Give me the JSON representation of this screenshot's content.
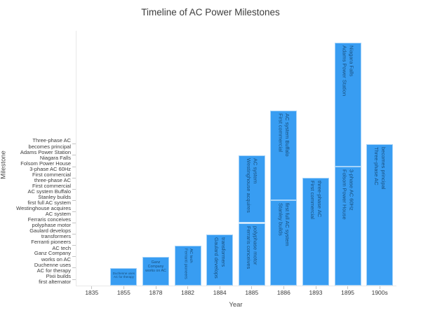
{
  "title": "Timeline of AC Power Milestones",
  "colors": {
    "bar_fill": "#389df2",
    "bar_inside_text": "#174e7c",
    "axis_text": "#3b3b3b",
    "title_text": "#3d3d3d",
    "axis_line": "#e8e8e8",
    "tick_mark": "#c4c4c4"
  },
  "chart_data": {
    "type": "bar",
    "stacked": true,
    "orientation": "vertical",
    "grid": false,
    "legend": false,
    "title": "Timeline of AC Power Milestones",
    "xlabel": "Year",
    "ylabel": "Milestone",
    "categories": [
      "1835",
      "1855",
      "1878",
      "1882",
      "1884",
      "1885",
      "1886",
      "1893",
      "1895",
      "1900s"
    ],
    "value_note": "segment height = milestone rank 0-12, stacked per year; 1835 bar has value 0 so it is invisible",
    "bars": [
      {
        "year": "1835",
        "segments": [
          {
            "lines": [
              "Pixii builds",
              "first alternator"
            ],
            "value": 0,
            "text_dir": "h"
          }
        ]
      },
      {
        "year": "1855",
        "segments": [
          {
            "lines": [
              "Duchenne uses",
              "AC for therapy"
            ],
            "value": 1,
            "text_dir": "h"
          }
        ]
      },
      {
        "year": "1878",
        "segments": [
          {
            "lines": [
              "Ganz Company",
              "works on AC"
            ],
            "value": 2,
            "text_dir": "h"
          }
        ]
      },
      {
        "year": "1882",
        "segments": [
          {
            "lines": [
              "Ferranti pioneers",
              "AC tech"
            ],
            "value": 3,
            "text_dir": "v"
          }
        ]
      },
      {
        "year": "1884",
        "segments": [
          {
            "lines": [
              "Gaulard develops",
              "transformers"
            ],
            "value": 4,
            "text_dir": "v"
          }
        ]
      },
      {
        "year": "1885",
        "segments": [
          {
            "lines": [
              "Ferraris conceives",
              "polyphase motor"
            ],
            "value": 5,
            "text_dir": "v"
          },
          {
            "lines": [
              "Westinghouse acquires",
              "AC system"
            ],
            "value": 6,
            "text_dir": "v"
          }
        ]
      },
      {
        "year": "1886",
        "segments": [
          {
            "lines": [
              "Stanley builds",
              "first full AC system"
            ],
            "value": 7,
            "text_dir": "v"
          },
          {
            "lines": [
              "First commercial",
              "AC system Buffalo"
            ],
            "value": 8,
            "text_dir": "v"
          }
        ]
      },
      {
        "year": "1893",
        "segments": [
          {
            "lines": [
              "First commercial",
              "three-phase AC"
            ],
            "value": 9,
            "text_dir": "v"
          }
        ]
      },
      {
        "year": "1895",
        "segments": [
          {
            "lines": [
              "Folsom Power House",
              "3-phase AC 60Hz"
            ],
            "value": 10,
            "text_dir": "v"
          },
          {
            "lines": [
              "Adams Power Station",
              "Niagara Falls"
            ],
            "value": 11,
            "text_dir": "v"
          }
        ]
      },
      {
        "year": "1900s",
        "segments": [
          {
            "lines": [
              "Three-phase AC",
              "becomes principal"
            ],
            "value": 12,
            "text_dir": "v"
          }
        ]
      }
    ],
    "y_tick_labels": [
      [
        "Pixii builds",
        "first alternator"
      ],
      [
        "Duchenne uses",
        "AC for therapy"
      ],
      [
        "Ganz Company",
        "works on AC"
      ],
      [
        "Ferranti pioneers",
        "AC tech"
      ],
      [
        "Gaulard develops",
        "transformers"
      ],
      [
        "Ferraris conceives",
        "polyphase motor"
      ],
      [
        "Westinghouse acquires",
        "AC system"
      ],
      [
        "Stanley builds",
        "first full AC system"
      ],
      [
        "First commercial",
        "AC system Buffalo"
      ],
      [
        "First commercial",
        "three-phase AC"
      ],
      [
        "Folsom Power House",
        "3-phase AC 60Hz"
      ],
      [
        "Adams Power Station",
        "Niagara Falls"
      ],
      [
        "Three-phase AC",
        "becomes principal"
      ]
    ]
  }
}
